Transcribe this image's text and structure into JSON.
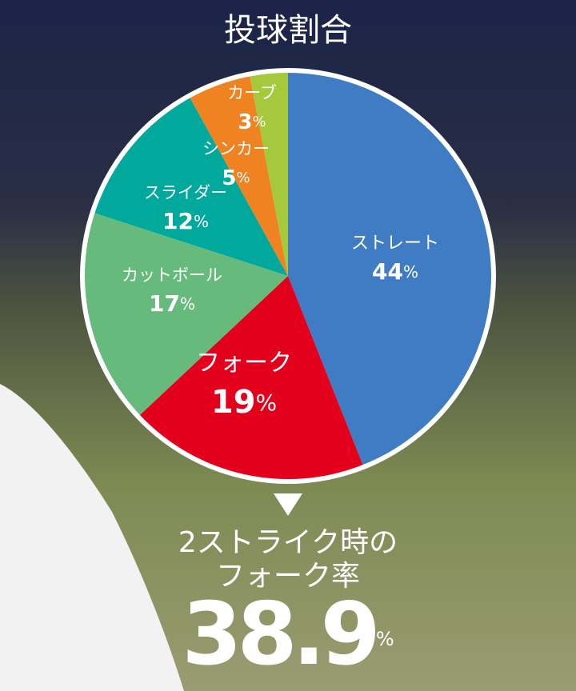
{
  "chart_data": {
    "type": "pie",
    "title": "投球割合",
    "categories": [
      "ストレート",
      "フォーク",
      "カットボール",
      "スライダー",
      "シンカー",
      "カーブ"
    ],
    "values": [
      44,
      19,
      17,
      12,
      5,
      3
    ],
    "value_labels": [
      "44%",
      "19%",
      "17%",
      "12%",
      "5%",
      "3%"
    ],
    "colors": [
      "#3f7cc4",
      "#e2001c",
      "#66bb7c",
      "#00a99c",
      "#ef8221",
      "#a5c93d"
    ],
    "callout": {
      "lines": [
        "2ストライク時の",
        "フォーク率"
      ],
      "value_label": "38.9%"
    }
  }
}
